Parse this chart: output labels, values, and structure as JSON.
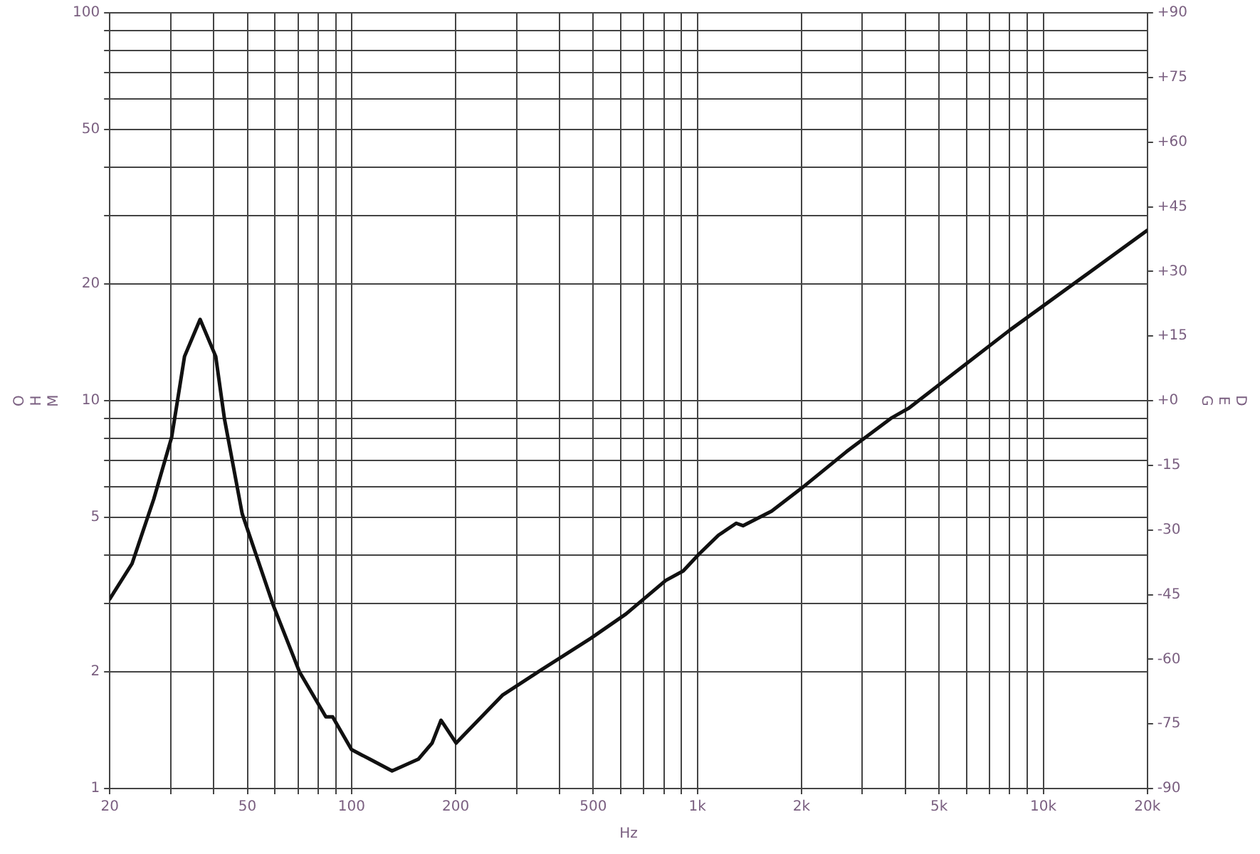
{
  "chart_data": {
    "type": "line",
    "xlabel": "Hz",
    "ylabel": "OHM",
    "y2label": "DEG",
    "log": "xy",
    "grid": true,
    "legend": false,
    "marker": "none",
    "line_style": "solid",
    "xlim": [
      20,
      20000
    ],
    "ylim": [
      1,
      100
    ],
    "y2lim": [
      -90,
      90
    ],
    "xticks": [
      20,
      {
        "value": 30,
        "label": null
      },
      {
        "value": 40,
        "label": null
      },
      50,
      {
        "value": 60,
        "label": null
      },
      {
        "value": 70,
        "label": null
      },
      {
        "value": 80,
        "label": null
      },
      {
        "value": 90,
        "label": null
      },
      100,
      200,
      {
        "value": 300,
        "label": null
      },
      {
        "value": 400,
        "label": null
      },
      500,
      {
        "value": 600,
        "label": null
      },
      {
        "value": 700,
        "label": null
      },
      {
        "value": 800,
        "label": null
      },
      {
        "value": 900,
        "label": null
      },
      {
        "value": 1000,
        "label": "1k"
      },
      {
        "value": 2000,
        "label": "2k"
      },
      {
        "value": 3000,
        "label": null
      },
      {
        "value": 4000,
        "label": null
      },
      {
        "value": 5000,
        "label": "5k"
      },
      {
        "value": 6000,
        "label": null
      },
      {
        "value": 7000,
        "label": null
      },
      {
        "value": 8000,
        "label": null
      },
      {
        "value": 9000,
        "label": null
      },
      {
        "value": 10000,
        "label": "10k"
      },
      {
        "value": 20000,
        "label": "20k"
      }
    ],
    "yticks": [
      1,
      2,
      {
        "value": 3,
        "label": null
      },
      {
        "value": 4,
        "label": null
      },
      5,
      {
        "value": 6,
        "label": null
      },
      {
        "value": 7,
        "label": null
      },
      {
        "value": 8,
        "label": null
      },
      {
        "value": 9,
        "label": null
      },
      10,
      20,
      {
        "value": 30,
        "label": null
      },
      {
        "value": 40,
        "label": null
      },
      50,
      {
        "value": 60,
        "label": null
      },
      {
        "value": 70,
        "label": null
      },
      {
        "value": 80,
        "label": null
      },
      {
        "value": 90,
        "label": null
      },
      100
    ],
    "y2ticks": [
      {
        "value": -90,
        "label": "-90"
      },
      {
        "value": -75,
        "label": "-75"
      },
      {
        "value": -60,
        "label": "-60"
      },
      {
        "value": -45,
        "label": "-45"
      },
      {
        "value": -30,
        "label": "-30"
      },
      {
        "value": -15,
        "label": "-15"
      },
      {
        "value": 0,
        "label": "+0"
      },
      {
        "value": 15,
        "label": "+15"
      },
      {
        "value": 30,
        "label": "+30"
      },
      {
        "value": 45,
        "label": "+45"
      },
      {
        "value": 60,
        "label": "+60"
      },
      {
        "value": 75,
        "label": "+75"
      },
      {
        "value": 90,
        "label": "+90"
      }
    ],
    "series": [
      {
        "color": "#111111",
        "x": [
          20,
          23.2,
          26.8,
          30.2,
          32.9,
          36.5,
          40.5,
          42.9,
          48.3,
          59.3,
          70.7,
          84.3,
          88.2,
          100,
          113,
          131,
          156,
          171,
          181.5,
          200.7,
          273,
          356,
          492,
          622,
          810,
          910,
          1010,
          1151,
          1295,
          1355,
          1639,
          2012,
          2699,
          3624,
          4075,
          8001,
          20000
        ],
        "values": [
          3.08,
          3.8,
          5.57,
          8.05,
          13,
          16.2,
          13,
          9,
          5.11,
          2.98,
          2,
          1.53,
          1.53,
          1.26,
          1.19,
          1.11,
          1.19,
          1.31,
          1.5,
          1.31,
          1.74,
          2.03,
          2.44,
          2.82,
          3.44,
          3.64,
          4.02,
          4.5,
          4.83,
          4.76,
          5.19,
          5.97,
          7.39,
          9,
          9.55,
          15.2,
          27.5
        ]
      }
    ]
  }
}
